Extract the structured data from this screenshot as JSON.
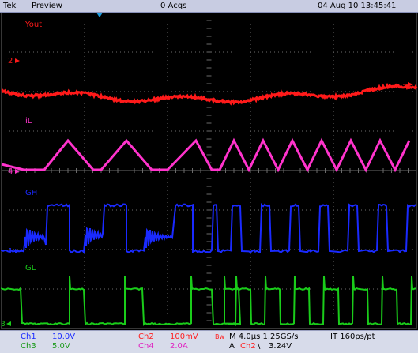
{
  "header": {
    "brand": "Tek",
    "mode": "Preview",
    "acqs": "0 Acqs",
    "datetime": "04 Aug 10 13:45:41"
  },
  "traces": {
    "ch2": {
      "label": "Yout",
      "marker": "2",
      "color": "#ff1a1a"
    },
    "ch4": {
      "label": "iL",
      "marker": "4",
      "color": "#ff33cc"
    },
    "ch1": {
      "label": "GH",
      "marker": "1",
      "color": "#1a2aff"
    },
    "ch3": {
      "label": "GL",
      "marker": "3",
      "color": "#1acc1a"
    }
  },
  "colors": {
    "grid": "#6b6b6b",
    "trigger": "#1f9fe0"
  },
  "status": {
    "ch1_name": "Ch1",
    "ch1_scale": "10.0V",
    "ch3_name": "Ch3",
    "ch3_scale": "5.0V",
    "ch2_name": "Ch2",
    "ch2_scale": "100mV",
    "ch4_name": "Ch4",
    "ch4_scale": "2.0A",
    "bw": "Bw",
    "timebase": "M 4.0µs 1.25GS/s",
    "record": "IT 160ps/pt",
    "trig_prefix": "A",
    "trig_src": "Ch2",
    "trig_slope": "\\",
    "trig_level": "3.24V"
  }
}
